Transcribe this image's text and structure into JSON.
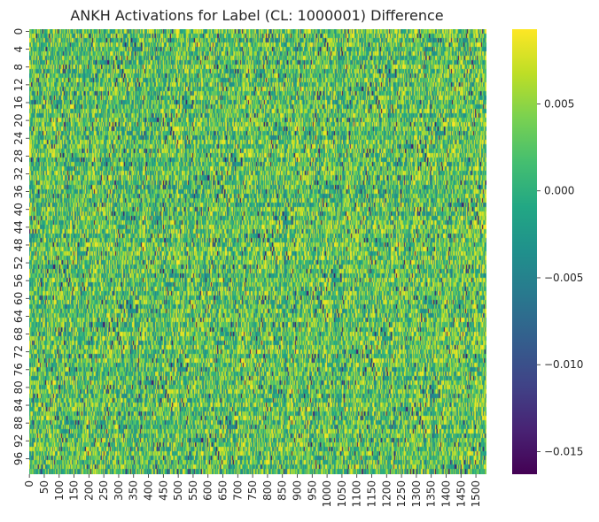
{
  "chart_data": {
    "type": "heatmap",
    "title": "ANKH Activations for Label (CL: 1000001) Difference",
    "xlabel": "",
    "ylabel": "",
    "rows": 100,
    "cols": 1536,
    "y_ticks": [
      "0",
      "4",
      "8",
      "12",
      "16",
      "20",
      "24",
      "28",
      "32",
      "36",
      "40",
      "44",
      "48",
      "52",
      "56",
      "60",
      "64",
      "68",
      "72",
      "76",
      "80",
      "84",
      "88",
      "92",
      "96"
    ],
    "x_ticks": [
      "0",
      "50",
      "100",
      "150",
      "200",
      "250",
      "300",
      "350",
      "400",
      "450",
      "500",
      "550",
      "600",
      "650",
      "700",
      "750",
      "800",
      "850",
      "900",
      "950",
      "1000",
      "1050",
      "1100",
      "1150",
      "1200",
      "1250",
      "1300",
      "1350",
      "1400",
      "1450",
      "1500"
    ],
    "colorbar": {
      "colormap": "viridis",
      "vmin": -0.0163,
      "vmax": 0.0093,
      "ticks": [
        {
          "value": 0.005,
          "label": "0.005"
        },
        {
          "value": 0.0,
          "label": "0.000"
        },
        {
          "value": -0.005,
          "label": "−0.005"
        },
        {
          "value": -0.01,
          "label": "−0.010"
        },
        {
          "value": -0.015,
          "label": "−0.015"
        }
      ]
    },
    "grid": false,
    "legend": "none"
  }
}
